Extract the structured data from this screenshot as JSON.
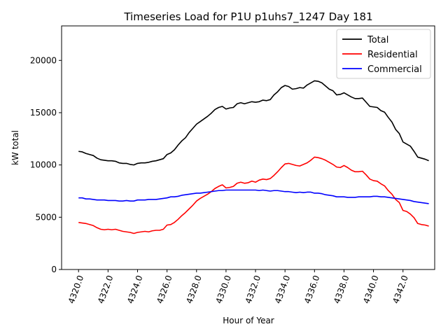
{
  "chart_data": {
    "type": "line",
    "title": "Timeseries Load for P1U p1uhs7_1247  Day 181",
    "xlabel": "Hour of Year",
    "ylabel": "kW total",
    "xlim": [
      4318.85,
      4344.15
    ],
    "ylim": [
      0,
      23300
    ],
    "xticks": [
      4320,
      4322,
      4324,
      4326,
      4328,
      4330,
      4332,
      4334,
      4336,
      4338,
      4340,
      4342
    ],
    "xtick_labels": [
      "4320.0",
      "4322.0",
      "4324.0",
      "4326.0",
      "4328.0",
      "4330.0",
      "4332.0",
      "4334.0",
      "4336.0",
      "4338.0",
      "4340.0",
      "4342.0"
    ],
    "yticks": [
      0,
      5000,
      10000,
      15000,
      20000
    ],
    "ytick_labels": [
      "0",
      "5000",
      "10000",
      "15000",
      "20000"
    ],
    "legend_position": "top-right",
    "x": [
      4320.0,
      4320.25,
      4320.5,
      4320.75,
      4321.0,
      4321.25,
      4321.5,
      4321.75,
      4322.0,
      4322.25,
      4322.5,
      4322.75,
      4323.0,
      4323.25,
      4323.5,
      4323.75,
      4324.0,
      4324.25,
      4324.5,
      4324.75,
      4325.0,
      4325.25,
      4325.5,
      4325.75,
      4326.0,
      4326.25,
      4326.5,
      4326.75,
      4327.0,
      4327.25,
      4327.5,
      4327.75,
      4328.0,
      4328.25,
      4328.5,
      4328.75,
      4329.0,
      4329.25,
      4329.5,
      4329.75,
      4330.0,
      4330.25,
      4330.5,
      4330.75,
      4331.0,
      4331.25,
      4331.5,
      4331.75,
      4332.0,
      4332.25,
      4332.5,
      4332.75,
      4333.0,
      4333.25,
      4333.5,
      4333.75,
      4334.0,
      4334.25,
      4334.5,
      4334.75,
      4335.0,
      4335.25,
      4335.5,
      4335.75,
      4336.0,
      4336.25,
      4336.5,
      4336.75,
      4337.0,
      4337.25,
      4337.5,
      4337.75,
      4338.0,
      4338.25,
      4338.5,
      4338.75,
      4339.0,
      4339.25,
      4339.5,
      4339.75,
      4340.0,
      4340.25,
      4340.5,
      4340.75,
      4341.0,
      4341.25,
      4341.5,
      4341.75,
      4342.0,
      4342.25,
      4342.5,
      4342.75,
      4343.0,
      4343.25,
      4343.5,
      4343.75
    ],
    "series": [
      {
        "name": "Total",
        "color": "#000000",
        "values": [
          11300,
          11250,
          11100,
          11000,
          10900,
          10650,
          10500,
          10450,
          10400,
          10400,
          10350,
          10200,
          10150,
          10150,
          10050,
          10000,
          10150,
          10200,
          10200,
          10250,
          10350,
          10400,
          10500,
          10600,
          11000,
          11150,
          11450,
          11900,
          12300,
          12600,
          13100,
          13500,
          13900,
          14150,
          14400,
          14650,
          14950,
          15300,
          15500,
          15600,
          15350,
          15450,
          15500,
          15850,
          15950,
          15850,
          15950,
          16050,
          16000,
          16050,
          16200,
          16150,
          16250,
          16700,
          17000,
          17400,
          17600,
          17500,
          17250,
          17300,
          17400,
          17350,
          17650,
          17850,
          18050,
          18000,
          17850,
          17550,
          17250,
          17100,
          16700,
          16750,
          16900,
          16700,
          16500,
          16350,
          16350,
          16400,
          16000,
          15600,
          15550,
          15500,
          15200,
          15050,
          14550,
          14100,
          13400,
          13000,
          12200,
          12000,
          11800,
          11300,
          10750,
          10650,
          10550,
          10400
        ]
      },
      {
        "name": "Residential",
        "color": "#ff0000",
        "values": [
          4500,
          4450,
          4400,
          4300,
          4200,
          4000,
          3850,
          3800,
          3850,
          3800,
          3850,
          3750,
          3650,
          3600,
          3550,
          3450,
          3550,
          3600,
          3650,
          3600,
          3700,
          3750,
          3750,
          3850,
          4250,
          4300,
          4500,
          4800,
          5150,
          5450,
          5800,
          6150,
          6550,
          6800,
          7000,
          7200,
          7450,
          7750,
          7950,
          8100,
          7800,
          7850,
          7950,
          8250,
          8350,
          8250,
          8300,
          8450,
          8350,
          8550,
          8650,
          8600,
          8700,
          9000,
          9350,
          9750,
          10100,
          10150,
          10050,
          9950,
          9900,
          10050,
          10200,
          10450,
          10750,
          10700,
          10600,
          10450,
          10250,
          10050,
          9800,
          9750,
          9950,
          9750,
          9500,
          9350,
          9350,
          9400,
          9050,
          8650,
          8500,
          8450,
          8200,
          8000,
          7550,
          7200,
          6700,
          6400,
          5650,
          5550,
          5300,
          4950,
          4400,
          4300,
          4250,
          4150
        ]
      },
      {
        "name": "Commercial",
        "color": "#0000ff",
        "values": [
          6850,
          6850,
          6750,
          6750,
          6700,
          6650,
          6650,
          6650,
          6600,
          6600,
          6600,
          6550,
          6550,
          6600,
          6550,
          6550,
          6650,
          6650,
          6650,
          6700,
          6700,
          6700,
          6750,
          6800,
          6850,
          6950,
          6950,
          7000,
          7100,
          7150,
          7200,
          7250,
          7300,
          7300,
          7350,
          7400,
          7450,
          7500,
          7550,
          7550,
          7600,
          7600,
          7600,
          7600,
          7600,
          7600,
          7600,
          7600,
          7600,
          7550,
          7600,
          7550,
          7500,
          7550,
          7550,
          7500,
          7450,
          7450,
          7400,
          7350,
          7400,
          7350,
          7400,
          7400,
          7300,
          7300,
          7250,
          7150,
          7100,
          7050,
          6950,
          6950,
          6950,
          6900,
          6900,
          6900,
          6950,
          6950,
          6950,
          6950,
          7000,
          7000,
          6950,
          6950,
          6900,
          6850,
          6800,
          6750,
          6700,
          6650,
          6600,
          6500,
          6450,
          6400,
          6350,
          6300
        ]
      }
    ]
  }
}
